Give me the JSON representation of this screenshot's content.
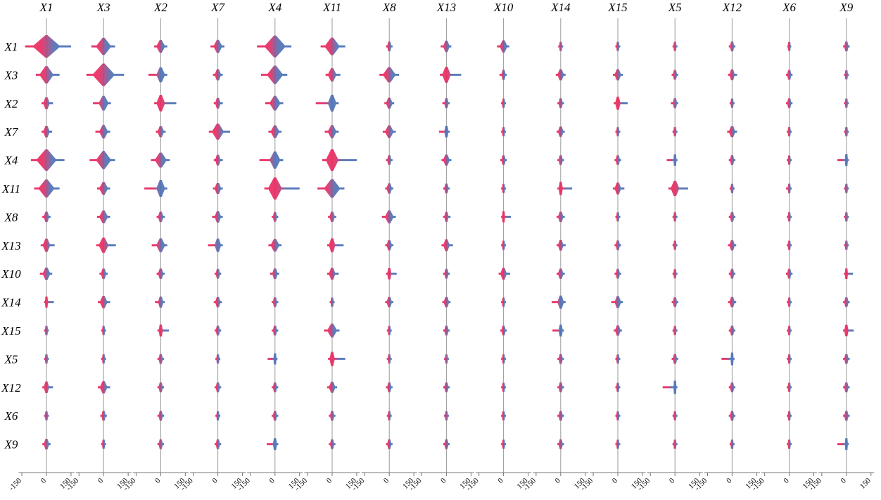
{
  "chart_data": {
    "type": "interaction-matrix",
    "columns": [
      "X1",
      "X3",
      "X2",
      "X7",
      "X4",
      "X11",
      "X8",
      "X13",
      "X10",
      "X14",
      "X15",
      "X5",
      "X12",
      "X6",
      "X9"
    ],
    "rows": [
      "X1",
      "X3",
      "X2",
      "X7",
      "X4",
      "X11",
      "X8",
      "X13",
      "X10",
      "X14",
      "X15",
      "X5",
      "X12",
      "X6",
      "X9"
    ],
    "xlim": [
      -170,
      170
    ],
    "xticks": [
      -150,
      0,
      150
    ],
    "colors": [
      "#e8275d",
      "#4a6fb5"
    ],
    "cells": [
      [
        [
          -130,
          150
        ],
        [
          -75,
          70
        ],
        [
          -40,
          40
        ],
        [
          -45,
          40
        ],
        [
          -110,
          100
        ],
        [
          -70,
          80
        ],
        [
          -20,
          20
        ],
        [
          -35,
          30
        ],
        [
          -40,
          35
        ],
        [
          -15,
          15
        ],
        [
          -15,
          15
        ],
        [
          -15,
          15
        ],
        [
          -20,
          20
        ],
        [
          -12,
          12
        ],
        [
          -20,
          20
        ]
      ],
      [
        [
          -65,
          80
        ],
        [
          -105,
          125
        ],
        [
          -75,
          40
        ],
        [
          -30,
          30
        ],
        [
          -85,
          75
        ],
        [
          -40,
          50
        ],
        [
          -60,
          60
        ],
        [
          -40,
          90
        ],
        [
          -25,
          20
        ],
        [
          -30,
          30
        ],
        [
          -30,
          30
        ],
        [
          -20,
          20
        ],
        [
          -25,
          30
        ],
        [
          -20,
          20
        ],
        [
          -15,
          15
        ]
      ],
      [
        [
          -30,
          40
        ],
        [
          -65,
          45
        ],
        [
          -40,
          95
        ],
        [
          -25,
          30
        ],
        [
          -60,
          50
        ],
        [
          -100,
          40
        ],
        [
          -30,
          30
        ],
        [
          -25,
          20
        ],
        [
          -15,
          15
        ],
        [
          -20,
          20
        ],
        [
          -25,
          60
        ],
        [
          -25,
          20
        ],
        [
          -15,
          15
        ],
        [
          -20,
          20
        ],
        [
          -15,
          15
        ]
      ],
      [
        [
          -30,
          35
        ],
        [
          -50,
          40
        ],
        [
          -30,
          30
        ],
        [
          -55,
          75
        ],
        [
          -40,
          40
        ],
        [
          -45,
          40
        ],
        [
          -40,
          40
        ],
        [
          -45,
          20
        ],
        [
          -15,
          15
        ],
        [
          -25,
          25
        ],
        [
          -15,
          15
        ],
        [
          -15,
          15
        ],
        [
          -30,
          30
        ],
        [
          -15,
          15
        ],
        [
          -15,
          15
        ]
      ],
      [
        [
          -95,
          110
        ],
        [
          -85,
          70
        ],
        [
          -60,
          55
        ],
        [
          -25,
          30
        ],
        [
          -95,
          50
        ],
        [
          -60,
          150
        ],
        [
          -20,
          20
        ],
        [
          -30,
          30
        ],
        [
          -20,
          20
        ],
        [
          -20,
          20
        ],
        [
          -20,
          20
        ],
        [
          -50,
          15
        ],
        [
          -20,
          20
        ],
        [
          -15,
          15
        ],
        [
          -55,
          15
        ]
      ],
      [
        [
          -75,
          80
        ],
        [
          -40,
          40
        ],
        [
          -100,
          40
        ],
        [
          -30,
          30
        ],
        [
          -65,
          150
        ],
        [
          -90,
          75
        ],
        [
          -25,
          25
        ],
        [
          -20,
          20
        ],
        [
          -15,
          15
        ],
        [
          -20,
          70
        ],
        [
          -30,
          40
        ],
        [
          -40,
          80
        ],
        [
          -15,
          15
        ],
        [
          -20,
          15
        ],
        [
          -15,
          15
        ]
      ],
      [
        [
          -25,
          25
        ],
        [
          -40,
          40
        ],
        [
          -25,
          25
        ],
        [
          -35,
          30
        ],
        [
          -20,
          20
        ],
        [
          -25,
          25
        ],
        [
          -45,
          40
        ],
        [
          -20,
          25
        ],
        [
          -15,
          45
        ],
        [
          -25,
          25
        ],
        [
          -15,
          15
        ],
        [
          -15,
          15
        ],
        [
          -20,
          20
        ],
        [
          -15,
          15
        ],
        [
          -15,
          15
        ]
      ],
      [
        [
          -35,
          50
        ],
        [
          -45,
          75
        ],
        [
          -55,
          40
        ],
        [
          -60,
          30
        ],
        [
          -40,
          40
        ],
        [
          -30,
          70
        ],
        [
          -25,
          25
        ],
        [
          -30,
          40
        ],
        [
          -15,
          15
        ],
        [
          -25,
          30
        ],
        [
          -20,
          20
        ],
        [
          -15,
          15
        ],
        [
          -25,
          25
        ],
        [
          -15,
          15
        ],
        [
          -15,
          15
        ]
      ],
      [
        [
          -40,
          35
        ],
        [
          -25,
          25
        ],
        [
          -25,
          25
        ],
        [
          -20,
          20
        ],
        [
          -30,
          25
        ],
        [
          -30,
          40
        ],
        [
          -20,
          45
        ],
        [
          -20,
          20
        ],
        [
          -30,
          40
        ],
        [
          -25,
          25
        ],
        [
          -20,
          20
        ],
        [
          -15,
          15
        ],
        [
          -20,
          20
        ],
        [
          -20,
          20
        ],
        [
          -15,
          40
        ]
      ],
      [
        [
          -15,
          45
        ],
        [
          -35,
          40
        ],
        [
          -35,
          25
        ],
        [
          -25,
          25
        ],
        [
          -20,
          20
        ],
        [
          -15,
          15
        ],
        [
          -25,
          25
        ],
        [
          -25,
          25
        ],
        [
          -15,
          15
        ],
        [
          -55,
          30
        ],
        [
          -40,
          30
        ],
        [
          -20,
          20
        ],
        [
          -25,
          25
        ],
        [
          -15,
          15
        ],
        [
          -20,
          20
        ]
      ],
      [
        [
          -15,
          15
        ],
        [
          -15,
          15
        ],
        [
          -20,
          50
        ],
        [
          -20,
          20
        ],
        [
          -20,
          20
        ],
        [
          -50,
          45
        ],
        [
          -15,
          15
        ],
        [
          -20,
          20
        ],
        [
          -20,
          20
        ],
        [
          -50,
          20
        ],
        [
          -25,
          25
        ],
        [
          -15,
          15
        ],
        [
          -20,
          20
        ],
        [
          -15,
          15
        ],
        [
          -20,
          45
        ]
      ],
      [
        [
          -15,
          15
        ],
        [
          -15,
          15
        ],
        [
          -20,
          20
        ],
        [
          -15,
          15
        ],
        [
          -45,
          15
        ],
        [
          -25,
          80
        ],
        [
          -15,
          15
        ],
        [
          -15,
          15
        ],
        [
          -15,
          15
        ],
        [
          -20,
          20
        ],
        [
          -15,
          15
        ],
        [
          -20,
          20
        ],
        [
          -65,
          15
        ],
        [
          -15,
          15
        ],
        [
          -20,
          20
        ]
      ],
      [
        [
          -25,
          40
        ],
        [
          -35,
          40
        ],
        [
          -20,
          20
        ],
        [
          -20,
          20
        ],
        [
          -20,
          20
        ],
        [
          -30,
          30
        ],
        [
          -20,
          20
        ],
        [
          -20,
          20
        ],
        [
          -15,
          15
        ],
        [
          -20,
          20
        ],
        [
          -15,
          15
        ],
        [
          -75,
          15
        ],
        [
          -20,
          20
        ],
        [
          -15,
          15
        ],
        [
          -20,
          20
        ]
      ],
      [
        [
          -15,
          15
        ],
        [
          -20,
          20
        ],
        [
          -20,
          20
        ],
        [
          -15,
          15
        ],
        [
          -20,
          20
        ],
        [
          -20,
          20
        ],
        [
          -15,
          15
        ],
        [
          -15,
          15
        ],
        [
          -15,
          15
        ],
        [
          -20,
          20
        ],
        [
          -15,
          15
        ],
        [
          -15,
          15
        ],
        [
          -20,
          20
        ],
        [
          -15,
          15
        ],
        [
          -20,
          20
        ]
      ],
      [
        [
          -25,
          25
        ],
        [
          -15,
          15
        ],
        [
          -20,
          20
        ],
        [
          -20,
          20
        ],
        [
          -50,
          20
        ],
        [
          -20,
          20
        ],
        [
          -20,
          20
        ],
        [
          -20,
          20
        ],
        [
          -15,
          15
        ],
        [
          -20,
          20
        ],
        [
          -15,
          15
        ],
        [
          -15,
          15
        ],
        [
          -15,
          15
        ],
        [
          -15,
          15
        ],
        [
          -55,
          15
        ]
      ]
    ]
  }
}
